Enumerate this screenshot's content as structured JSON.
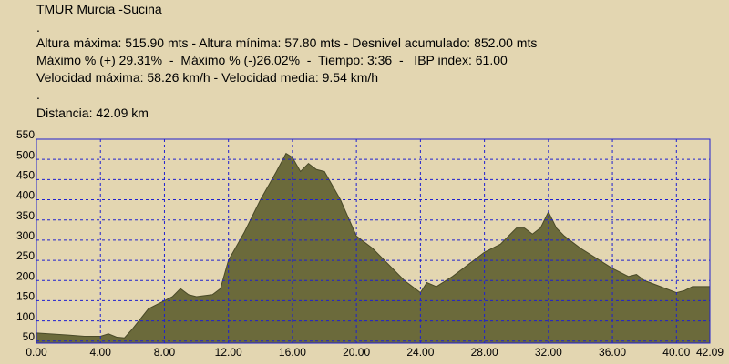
{
  "header": {
    "lines": [
      "TMUR Murcia -Sucina",
      ".",
      "Altura máxima: 515.90 mts - Altura mínima: 57.80 mts - Desnivel acumulado: 852.00 mts",
      "Máximo % (+) 29.31%  -  Máximo % (-)26.02%  -  Tiempo: 3:36  -   IBP index: 61.00",
      "Velocidad máxima: 58.26 km/h - Velocidad media: 9.54 km/h",
      ".",
      "Distancia: 42.09 km"
    ]
  },
  "chart_data": {
    "type": "area",
    "color": "#6b6a3b",
    "grid": true,
    "xlim": [
      0,
      42.09
    ],
    "ylim": [
      45,
      550
    ],
    "xticks": [
      {
        "value": 0,
        "label": "0.00"
      },
      {
        "value": 4,
        "label": "4.00"
      },
      {
        "value": 8,
        "label": "8.00"
      },
      {
        "value": 12,
        "label": "12.00"
      },
      {
        "value": 16,
        "label": "16.00"
      },
      {
        "value": 20,
        "label": "20.00"
      },
      {
        "value": 24,
        "label": "24.00"
      },
      {
        "value": 28,
        "label": "28.00"
      },
      {
        "value": 32,
        "label": "32.00"
      },
      {
        "value": 36,
        "label": "36.00"
      },
      {
        "value": 40,
        "label": "40.00"
      },
      {
        "value": 42.09,
        "label": "42.09"
      }
    ],
    "yticks": [
      50,
      100,
      150,
      200,
      250,
      300,
      350,
      400,
      450,
      500,
      550
    ],
    "x": [
      0,
      2,
      3,
      4,
      4.5,
      5,
      5.5,
      6,
      7,
      8,
      8.5,
      9,
      9.5,
      10,
      11,
      11.5,
      12,
      13,
      14,
      15,
      15.6,
      16,
      16.5,
      17,
      17.5,
      18,
      19,
      20,
      21,
      22,
      23,
      24,
      24.4,
      25,
      26,
      27,
      28,
      29,
      30,
      30.5,
      31,
      31.5,
      32,
      32.5,
      33,
      34,
      35,
      36,
      37,
      37.5,
      38,
      39,
      40,
      40.5,
      41,
      42.09
    ],
    "values": [
      70,
      65,
      62,
      62,
      68,
      60,
      58,
      80,
      130,
      150,
      160,
      180,
      165,
      160,
      165,
      180,
      250,
      320,
      400,
      470,
      515,
      505,
      470,
      490,
      475,
      470,
      400,
      310,
      280,
      240,
      200,
      170,
      195,
      185,
      210,
      240,
      270,
      290,
      330,
      330,
      315,
      330,
      370,
      330,
      310,
      280,
      255,
      230,
      210,
      215,
      200,
      185,
      170,
      175,
      185,
      185
    ]
  }
}
